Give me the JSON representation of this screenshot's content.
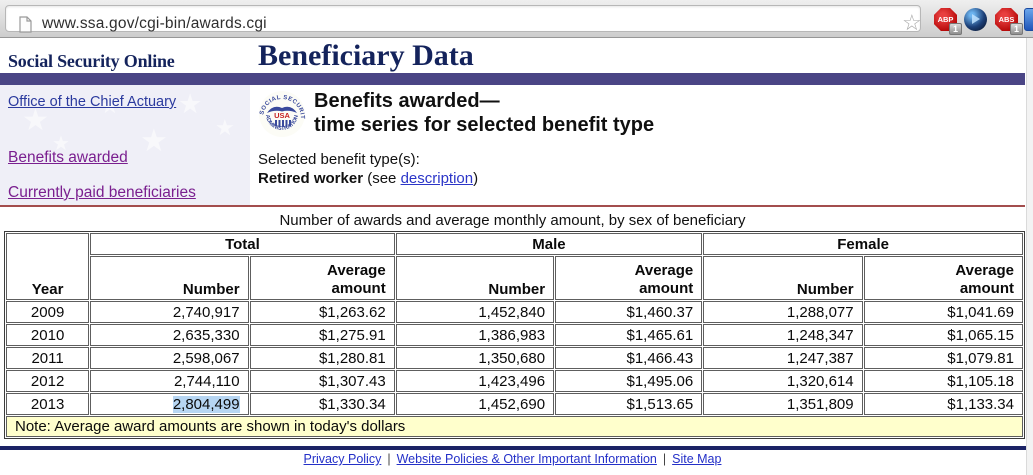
{
  "browser": {
    "url": "www.ssa.gov/cgi-bin/awards.cgi",
    "bookmark_star": "☆",
    "extensions": [
      {
        "label": "ABP",
        "badge": "1"
      },
      {
        "label": "",
        "badge": ""
      },
      {
        "label": "ABS",
        "badge": "1"
      }
    ]
  },
  "header": {
    "site_name": "Social Security Online",
    "page_title": "Beneficiary Data"
  },
  "sidebar": {
    "links": [
      {
        "label": "Office of the Chief Actuary"
      },
      {
        "label": "Benefits awarded"
      },
      {
        "label": "Currently paid beneficiaries"
      }
    ]
  },
  "content": {
    "heading_line1": "Benefits awarded—",
    "heading_line2": "time series for selected benefit type",
    "selected_label": "Selected benefit type(s):",
    "benefit_type": "Retired worker",
    "see_open": " (see ",
    "description_link": "description",
    "see_close": ")",
    "seal_text_top": "SOCIAL SECURITY",
    "seal_text_bottom": "ADMINISTRATION",
    "seal_usa": "USA"
  },
  "table": {
    "caption": "Number of awards and average monthly amount, by sex of beneficiary",
    "col_year": "Year",
    "group_headers": [
      "Total",
      "Male",
      "Female"
    ],
    "number_header": "Number",
    "average_header": "Average amount",
    "rows": [
      {
        "year": "2009",
        "total_number": "2,740,917",
        "total_avg": "$1,263.62",
        "male_number": "1,452,840",
        "male_avg": "$1,460.37",
        "female_number": "1,288,077",
        "female_avg": "$1,041.69"
      },
      {
        "year": "2010",
        "total_number": "2,635,330",
        "total_avg": "$1,275.91",
        "male_number": "1,386,983",
        "male_avg": "$1,465.61",
        "female_number": "1,248,347",
        "female_avg": "$1,065.15"
      },
      {
        "year": "2011",
        "total_number": "2,598,067",
        "total_avg": "$1,280.81",
        "male_number": "1,350,680",
        "male_avg": "$1,466.43",
        "female_number": "1,247,387",
        "female_avg": "$1,079.81"
      },
      {
        "year": "2012",
        "total_number": "2,744,110",
        "total_avg": "$1,307.43",
        "male_number": "1,423,496",
        "male_avg": "$1,495.06",
        "female_number": "1,320,614",
        "female_avg": "$1,105.18"
      },
      {
        "year": "2013",
        "total_number": "2,804,499",
        "total_avg": "$1,330.34",
        "male_number": "1,452,690",
        "male_avg": "$1,513.65",
        "female_number": "1,351,809",
        "female_avg": "$1,133.34"
      }
    ],
    "note": "Note: Average award amounts are shown in today's dollars",
    "selection": {
      "row_year": "2013",
      "column": "total_number"
    }
  },
  "footer": {
    "separator": "|",
    "links": [
      "Privacy Policy",
      "Website Policies & Other Important Information",
      "Site Map"
    ]
  },
  "colors": {
    "navy_text": "#14235c",
    "purple_bar": "#4a4585",
    "link_blue": "#2b35c8",
    "link_visited": "#7a1f8f",
    "maroon_rule": "#a34d4d",
    "note_bg": "#ffffcc",
    "selection_bg": "#b6d5f2",
    "extension_red": "#b90c0c"
  }
}
